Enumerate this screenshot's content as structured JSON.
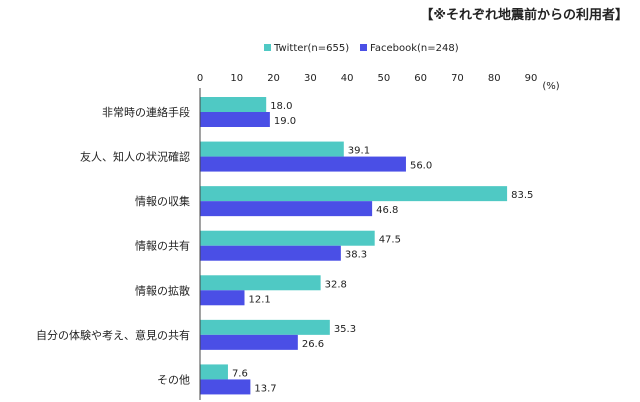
{
  "chart_data": {
    "type": "bar",
    "orientation": "horizontal",
    "title": "【※それぞれ地震前からの利用者】",
    "unit_label": "(%)",
    "xlim": [
      0,
      90
    ],
    "ticks": [
      0,
      10,
      20,
      30,
      40,
      50,
      60,
      70,
      80,
      90
    ],
    "grid": false,
    "legend_position": "top",
    "categories": [
      "非常時の連絡手段",
      "友人、知人の状況確認",
      "情報の収集",
      "情報の共有",
      "情報の拡散",
      "自分の体験や考え、意見の共有",
      "その他"
    ],
    "series": [
      {
        "name": "Twitter(n=655)",
        "color": "#4fc9c4",
        "values": [
          18.0,
          39.1,
          83.5,
          47.5,
          32.8,
          35.3,
          7.6
        ],
        "labels": [
          "18.0",
          "39.1",
          "83.5",
          "47.5",
          "32.8",
          "35.3",
          "7.6"
        ]
      },
      {
        "name": "Facebook(n=248)",
        "color": "#4a4fe6",
        "values": [
          19.0,
          56.0,
          46.8,
          38.3,
          12.1,
          26.6,
          13.7
        ],
        "labels": [
          "19.0",
          "56.0",
          "46.8",
          "38.3",
          "12.1",
          "26.6",
          "13.7"
        ]
      }
    ]
  }
}
